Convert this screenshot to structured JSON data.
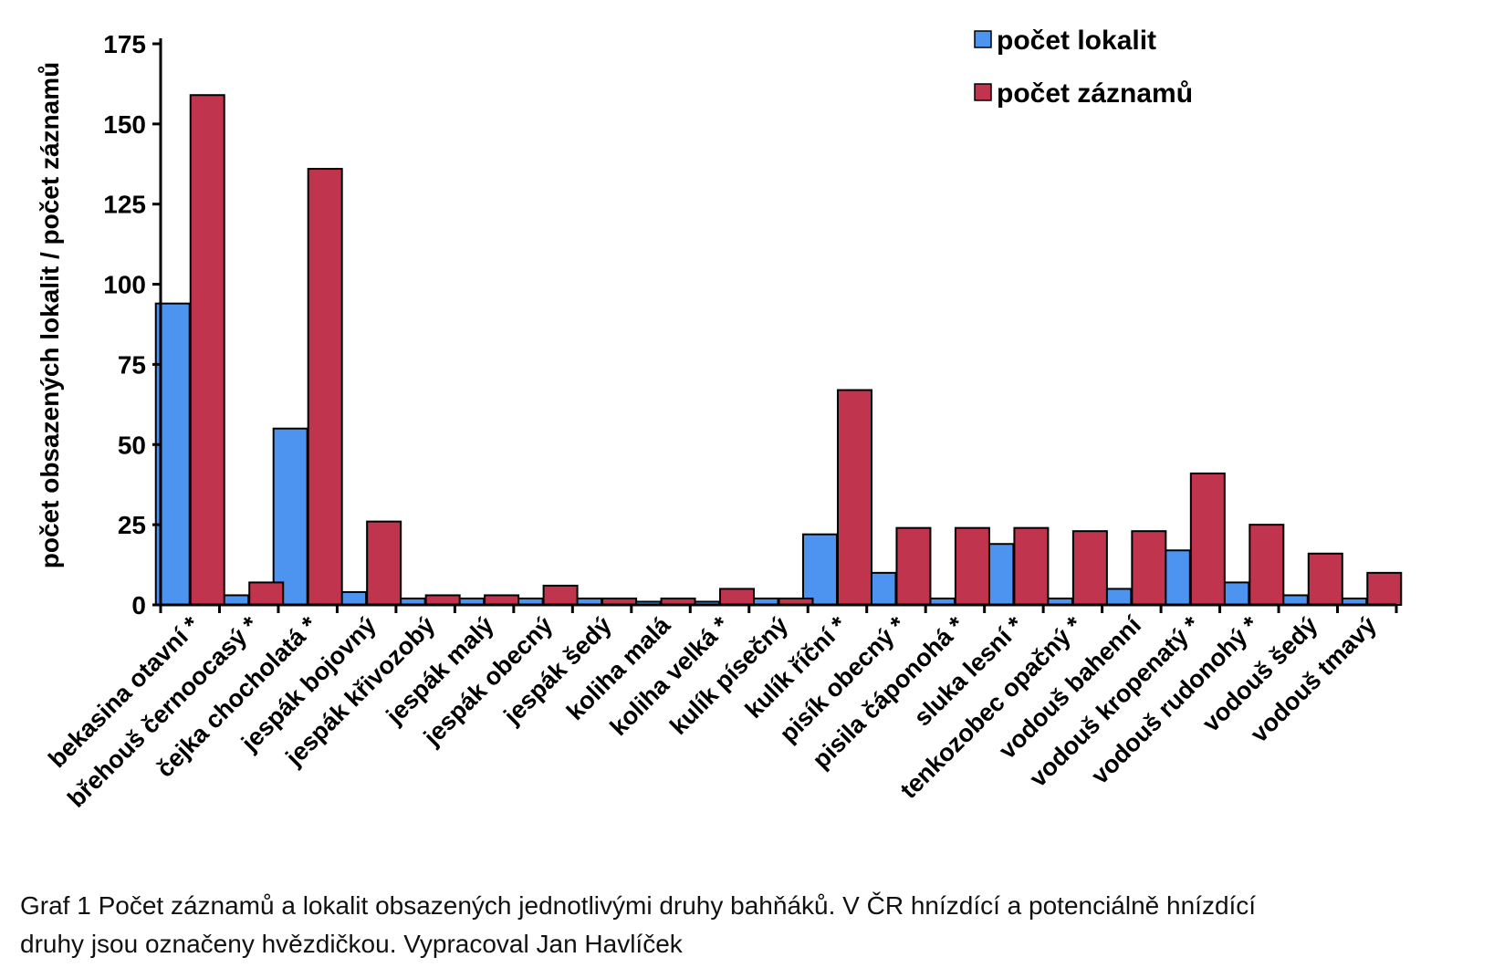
{
  "chart_data": {
    "type": "bar",
    "ylabel": "počet obsazených lokalit / počet záznamů",
    "ylim": [
      0,
      175
    ],
    "yticks": [
      0,
      25,
      50,
      75,
      100,
      125,
      150,
      175
    ],
    "legend_position": "top-right",
    "grid": false,
    "categories": [
      "bekasina otavní *",
      "břehouš černoocasý *",
      "čejka chocholatá *",
      "jespák bojovný",
      "jespák křivozobý",
      "jespák malý",
      "jespák obecný",
      "jespák šedý",
      "koliha malá",
      "koliha velká *",
      "kulík písečný",
      "kulík říční *",
      "pisík obecný *",
      "pisila čáponohá *",
      "sluka lesní *",
      "tenkozobec opačný *",
      "vodouš bahenní",
      "vodouš kropenatý *",
      "vodouš rudonohý *",
      "vodouš šedý",
      "vodouš tmavý"
    ],
    "series": [
      {
        "name": "počet lokalit",
        "color": "#4d94f0",
        "values": [
          94,
          3,
          55,
          4,
          2,
          2,
          2,
          2,
          1,
          1,
          2,
          22,
          10,
          2,
          19,
          2,
          5,
          17,
          7,
          3,
          2
        ]
      },
      {
        "name": "počet záznamů",
        "color": "#c1344d",
        "values": [
          159,
          7,
          136,
          26,
          3,
          3,
          6,
          2,
          2,
          5,
          2,
          67,
          24,
          24,
          24,
          23,
          23,
          41,
          25,
          16,
          10
        ]
      }
    ]
  },
  "caption": {
    "line1": "Graf 1 Počet záznamů a lokalit obsazených jednotlivými druhy bahňáků. V ČR hnízdící a potenciálně hnízdící",
    "line2": "druhy jsou označeny hvězdičkou. Vypracoval Jan Havlíček"
  }
}
